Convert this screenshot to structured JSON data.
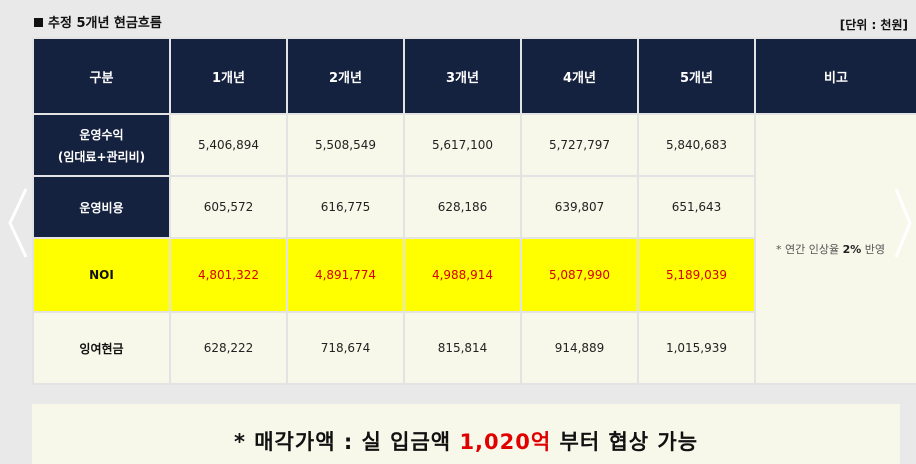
{
  "header": {
    "title": "추정 5개년 현금흐름",
    "unit": "[단위 : 천원]"
  },
  "table": {
    "columns": [
      "구분",
      "1개년",
      "2개년",
      "3개년",
      "4개년",
      "5개년",
      "비고"
    ],
    "rows": [
      {
        "label_line1": "운영수익",
        "label_line2": "(임대료+관리비)",
        "values": [
          "5,406,894",
          "5,508,549",
          "5,617,100",
          "5,727,797",
          "5,840,683"
        ]
      },
      {
        "label": "운영비용",
        "values": [
          "605,572",
          "616,775",
          "628,186",
          "639,807",
          "651,643"
        ]
      },
      {
        "label": "NOI",
        "values": [
          "4,801,322",
          "4,891,774",
          "4,988,914",
          "5,087,990",
          "5,189,039"
        ]
      },
      {
        "label": "잉여현금",
        "values": [
          "628,222",
          "718,674",
          "815,814",
          "914,889",
          "1,015,939"
        ]
      }
    ],
    "remark_prefix": "* 연간 인상율",
    "remark_rate": "2%",
    "remark_suffix": "반영"
  },
  "banner": {
    "prefix": "* 매각가액 : 실 입금액",
    "amount": "1,020억",
    "suffix": "부터 협상 가능"
  },
  "nav": {
    "left_icon": "chevron-left-icon",
    "right_icon": "chevron-right-icon"
  },
  "colors": {
    "header_bg": "#14213f",
    "cell_bg": "#f8f8ea",
    "noi_bg": "#ffff00",
    "noi_text": "#d60000",
    "banner_amount": "#e00000"
  }
}
